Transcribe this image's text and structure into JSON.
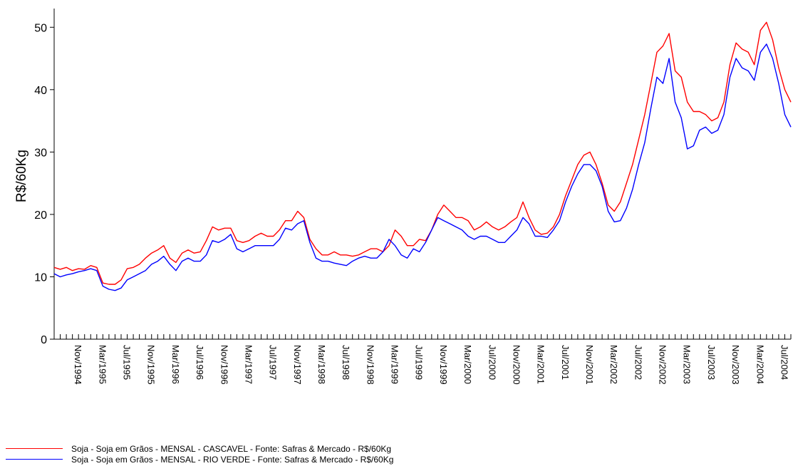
{
  "chart_data": {
    "type": "line",
    "ylabel": "R$/60Kg",
    "xlabel": "",
    "ylim": [
      0,
      53
    ],
    "yticks": [
      0,
      10,
      20,
      30,
      40,
      50
    ],
    "start_month": "Jul/1994",
    "x_tick_labels": [
      "Nov/1994",
      "Mar/1995",
      "Jul/1995",
      "Nov/1995",
      "Mar/1996",
      "Jul/1996",
      "Nov/1996",
      "Mar/1997",
      "Jul/1997",
      "Nov/1997",
      "Mar/1998",
      "Jul/1998",
      "Nov/1998",
      "Mar/1999",
      "Jul/1999",
      "Nov/1999",
      "Mar/2000",
      "Jul/2000",
      "Nov/2000",
      "Mar/2001",
      "Jul/2001",
      "Nov/2001",
      "Mar/2002",
      "Jul/2002",
      "Nov/2002",
      "Mar/2003",
      "Jul/2003",
      "Nov/2003",
      "Mar/2004",
      "Jul/2004"
    ],
    "grid": false,
    "legend_position": "bottom",
    "series": [
      {
        "name": "Soja - Soja em Grãos - MENSAL - CASCAVEL - Fonte: Safras & Mercado - R$/60Kg",
        "color": "#ff0000",
        "values": [
          11.5,
          11.2,
          11.5,
          11.0,
          11.3,
          11.2,
          11.8,
          11.5,
          9.0,
          8.8,
          8.8,
          9.5,
          11.3,
          11.5,
          12.0,
          13.0,
          13.8,
          14.3,
          15.0,
          13.0,
          12.3,
          13.8,
          14.3,
          13.8,
          14.0,
          15.8,
          18.0,
          17.5,
          17.8,
          17.8,
          15.8,
          15.5,
          15.8,
          16.5,
          17.0,
          16.5,
          16.5,
          17.5,
          19.0,
          19.0,
          20.5,
          19.5,
          16.0,
          14.5,
          13.5,
          13.5,
          14.0,
          13.5,
          13.5,
          13.3,
          13.5,
          14.0,
          14.5,
          14.5,
          14.0,
          15.0,
          17.5,
          16.5,
          15.0,
          15.0,
          16.0,
          15.8,
          17.5,
          20.0,
          21.5,
          20.5,
          19.5,
          19.5,
          19.0,
          17.5,
          18.0,
          18.8,
          18.0,
          17.5,
          18.0,
          18.8,
          19.5,
          22.0,
          19.5,
          17.5,
          16.8,
          17.0,
          18.0,
          20.0,
          23.0,
          25.5,
          28.0,
          29.5,
          30.0,
          28.0,
          25.0,
          21.5,
          20.5,
          22.0,
          25.0,
          28.0,
          32.0,
          36.0,
          41.0,
          46.0,
          47.0,
          49.0,
          43.0,
          42.0,
          38.0,
          36.5,
          36.5,
          36.0,
          35.0,
          35.5,
          38.0,
          44.0,
          47.5,
          46.5,
          46.0,
          44.0,
          49.5,
          50.8,
          48.0,
          43.5,
          40.0,
          38.0
        ]
      },
      {
        "name": "Soja - Soja em Grãos - MENSAL - RIO VERDE - Fonte: Safras & Mercado - R$/60Kg",
        "color": "#0000ff",
        "values": [
          10.5,
          10.0,
          10.3,
          10.5,
          10.8,
          11.0,
          11.3,
          11.0,
          8.5,
          8.0,
          7.8,
          8.2,
          9.5,
          10.0,
          10.5,
          11.0,
          12.0,
          12.5,
          13.3,
          12.0,
          11.0,
          12.5,
          13.0,
          12.5,
          12.5,
          13.5,
          15.8,
          15.5,
          16.0,
          16.8,
          14.5,
          14.0,
          14.5,
          15.0,
          15.0,
          15.0,
          15.0,
          16.0,
          17.8,
          17.5,
          18.5,
          19.0,
          15.5,
          13.0,
          12.5,
          12.5,
          12.2,
          12.0,
          11.8,
          12.5,
          13.0,
          13.3,
          13.0,
          13.0,
          14.0,
          16.0,
          15.0,
          13.5,
          13.0,
          14.5,
          14.0,
          15.5,
          17.5,
          19.5,
          19.0,
          18.5,
          18.0,
          17.5,
          16.5,
          16.0,
          16.5,
          16.5,
          16.0,
          15.5,
          15.5,
          16.5,
          17.5,
          19.5,
          18.5,
          16.5,
          16.5,
          16.3,
          17.5,
          19.0,
          22.0,
          24.5,
          26.5,
          28.0,
          28.0,
          27.0,
          24.5,
          20.5,
          18.8,
          19.0,
          21.0,
          24.0,
          28.0,
          31.5,
          37.0,
          42.0,
          41.0,
          45.0,
          38.0,
          35.5,
          30.5,
          31.0,
          33.5,
          34.0,
          33.0,
          33.5,
          36.0,
          42.0,
          45.0,
          43.5,
          43.0,
          41.5,
          46.0,
          47.3,
          45.0,
          41.0,
          36.0,
          34.0
        ]
      }
    ]
  }
}
